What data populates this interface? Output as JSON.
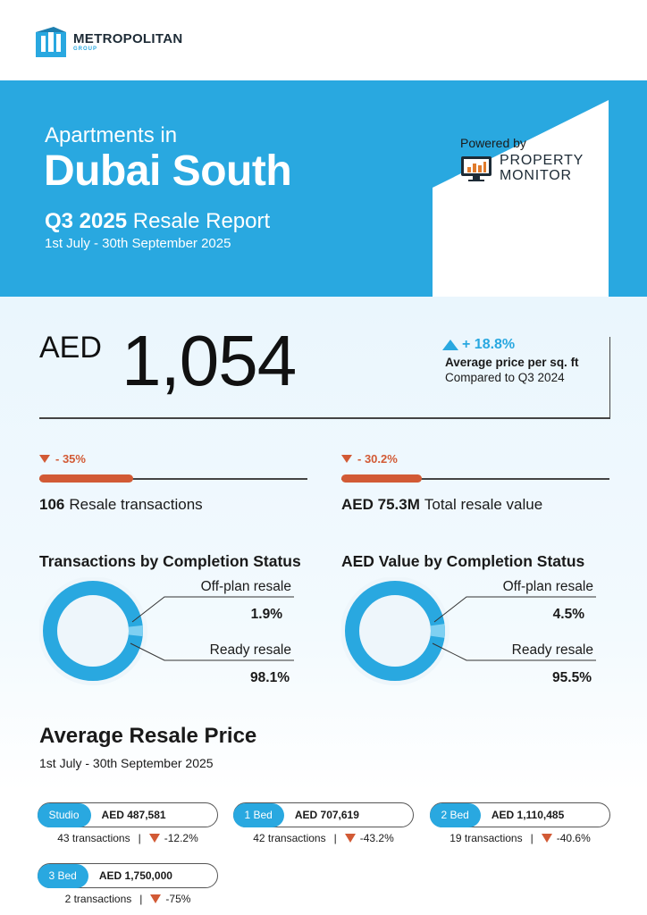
{
  "brand": {
    "name": "METROPOLITAN",
    "sub": "GROUP",
    "color": "#29a8e0"
  },
  "hero": {
    "pre_title": "Apartments in",
    "title": "Dubai South",
    "report_bold": "Q3 2025",
    "report_rest": " Resale Report",
    "dates": "1st July - 30th September 2025",
    "powered_by": "Powered by",
    "partner_line1": "PROPERTY",
    "partner_line2": "MONITOR"
  },
  "headline": {
    "currency": "AED",
    "value": "1,054",
    "change": "+ 18.8%",
    "change_direction": "up",
    "label": "Average price per sq. ft",
    "comparison": "Compared to Q3 2024"
  },
  "stats": [
    {
      "delta": "- 35%",
      "direction": "down",
      "fill_fraction": 0.35,
      "value": "106",
      "label": "Resale transactions"
    },
    {
      "delta": "- 30.2%",
      "direction": "down",
      "fill_fraction": 0.3,
      "value": "AED 75.3M",
      "label": "Total resale value"
    }
  ],
  "completion": [
    {
      "title": "Transactions by Completion Status",
      "offplan_label": "Off-plan resale",
      "offplan_value": "1.9%",
      "offplan_fraction": 0.019,
      "ready_label": "Ready resale",
      "ready_value": "98.1%"
    },
    {
      "title": "AED Value by Completion Status",
      "offplan_label": "Off-plan resale",
      "offplan_value": "4.5%",
      "offplan_fraction": 0.045,
      "ready_label": "Ready resale",
      "ready_value": "95.5%"
    }
  ],
  "average": {
    "title": "Average Resale Price",
    "dates": "1st July - 30th September 2025",
    "items": [
      {
        "type": "Studio",
        "price": "AED 487,581",
        "transactions": "43  transactions",
        "sep": "|",
        "change": "-12.2%"
      },
      {
        "type": "1 Bed",
        "price": "AED 707,619",
        "transactions": "42  transactions",
        "sep": "|",
        "change": "-43.2%"
      },
      {
        "type": "2 Bed",
        "price": "AED 1,110,485",
        "transactions": "19  transactions",
        "sep": "|",
        "change": "-40.6%"
      },
      {
        "type": "3 Bed",
        "price": "AED 1,750,000",
        "transactions": "2  transactions",
        "sep": "|",
        "change": "-75%"
      }
    ]
  },
  "colors": {
    "accent": "#29a8e0",
    "down": "#d25a35",
    "donut_light": "#7fd0f2"
  }
}
